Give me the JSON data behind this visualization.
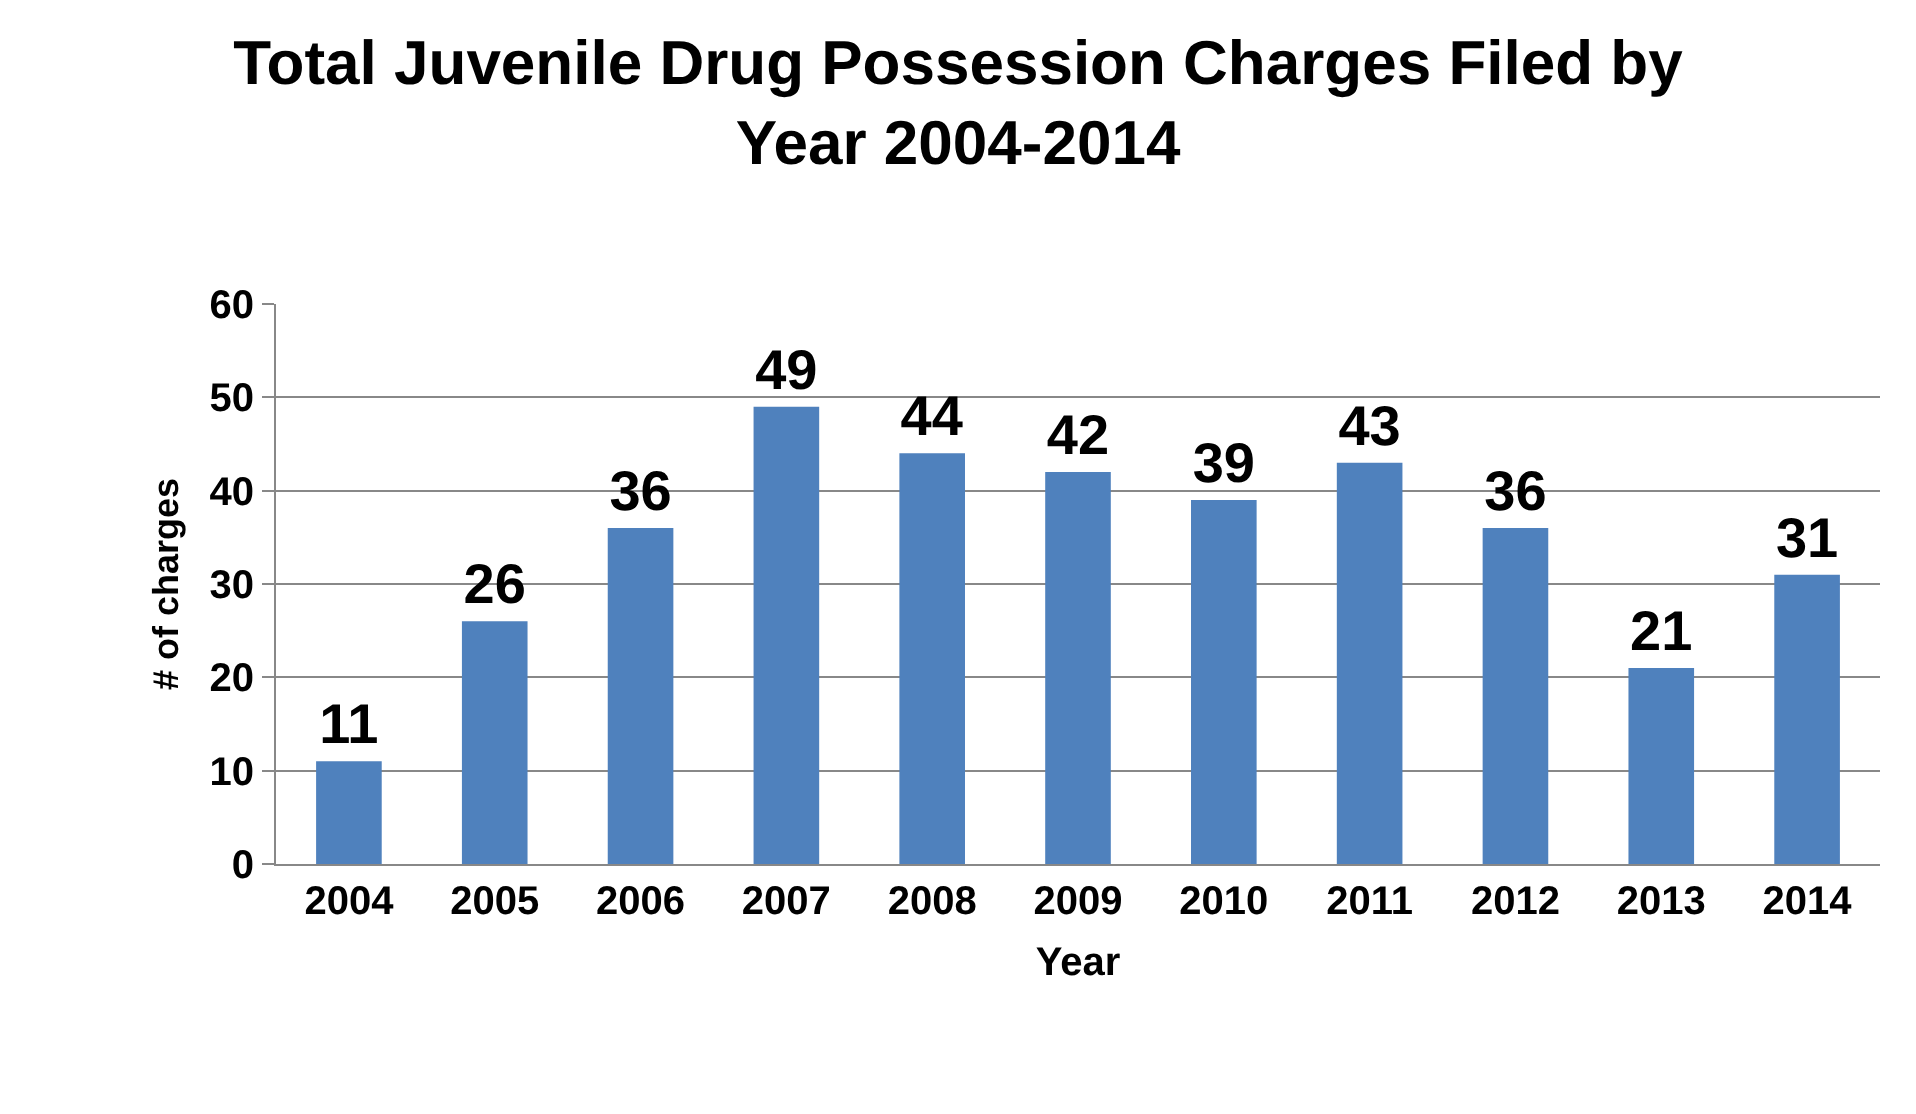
{
  "chart_data": {
    "type": "bar",
    "title": "Total Juvenile Drug Possession Charges Filed by Year 2004-2014",
    "xlabel": "Year",
    "ylabel": "# of charges",
    "categories": [
      "2004",
      "2005",
      "2006",
      "2007",
      "2008",
      "2009",
      "2010",
      "2011",
      "2012",
      "2013",
      "2014"
    ],
    "values": [
      11,
      26,
      36,
      49,
      44,
      42,
      39,
      43,
      36,
      21,
      31
    ],
    "color": "#4f81bd",
    "ylim": [
      0,
      60
    ],
    "yticks": [
      0,
      10,
      20,
      30,
      40,
      50,
      60
    ],
    "grid": "y",
    "data_labels": true,
    "legend": false
  }
}
